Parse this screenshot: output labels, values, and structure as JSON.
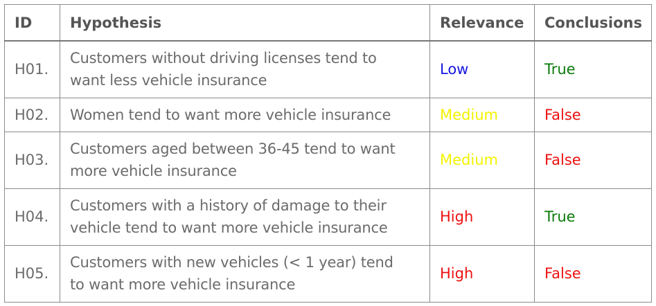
{
  "table": {
    "headers": {
      "id": "ID",
      "hypothesis": "Hypothesis",
      "relevance": "Relevance",
      "conclusions": "Conclusions"
    },
    "rows": [
      {
        "id": "H01.",
        "hypothesis": [
          "Customers without driving licenses tend to",
          "want less vehicle insurance"
        ],
        "relevance": "Low",
        "conclusion": "True"
      },
      {
        "id": "H02.",
        "hypothesis": [
          "Women tend to want more vehicle insurance"
        ],
        "relevance": "Medium",
        "conclusion": "False"
      },
      {
        "id": "H03.",
        "hypothesis": [
          "Customers aged between 36-45 tend to want",
          "more vehicle insurance"
        ],
        "relevance": "Medium",
        "conclusion": "False"
      },
      {
        "id": "H04.",
        "hypothesis": [
          "Customers with a history of damage to their",
          "vehicle tend to want more vehicle insurance"
        ],
        "relevance": "High",
        "conclusion": "True"
      },
      {
        "id": "H05.",
        "hypothesis": [
          "Customers with new vehicles (< 1 year) tend",
          "to want more vehicle insurance"
        ],
        "relevance": "High",
        "conclusion": "False"
      }
    ]
  },
  "colors": {
    "Low": "#1515e0",
    "Medium": "#f3f300",
    "High": "#ee1111",
    "True": "#0a7a0a",
    "False": "#ee1111"
  }
}
